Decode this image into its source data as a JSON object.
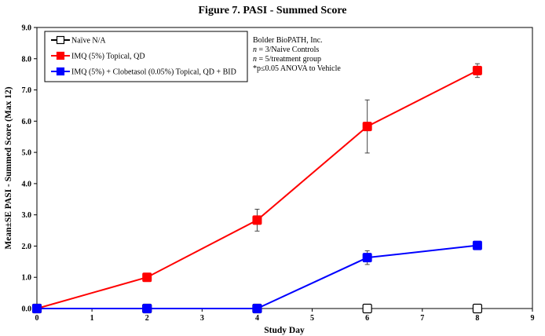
{
  "chart_data": {
    "type": "line",
    "title": "Figure 7. PASI - Summed Score",
    "xlabel": "Study Day",
    "ylabel": "Mean±SE PASI - Summed Score (Max 12)",
    "xlim": [
      0,
      9
    ],
    "ylim": [
      0,
      9
    ],
    "xticks": [
      0,
      1,
      2,
      3,
      4,
      5,
      6,
      7,
      8,
      9
    ],
    "yticks": [
      "0.0",
      "1.0",
      "2.0",
      "3.0",
      "4.0",
      "5.0",
      "6.0",
      "7.0",
      "8.0",
      "9.0"
    ],
    "grid": false,
    "legend_position": "top-left",
    "series": [
      {
        "name": "Naïve N/A",
        "color": "#000000",
        "marker": "hollow-square",
        "x": [
          0,
          2,
          4,
          6,
          8
        ],
        "y": [
          0.0,
          0.0,
          0.0,
          0.0,
          0.0
        ],
        "err": [
          0,
          0,
          0,
          0,
          0
        ],
        "line": false
      },
      {
        "name": "IMQ (5%) Topical, QD",
        "color": "#ff0000",
        "marker": "filled-square",
        "x": [
          0,
          2,
          4,
          6,
          8
        ],
        "y": [
          0.0,
          1.0,
          2.83,
          5.83,
          7.62
        ],
        "err": [
          0,
          0,
          0.35,
          0.85,
          0.22
        ],
        "line": true
      },
      {
        "name": "IMQ (5%) + Clobetasol (0.05%) Topical, QD + BID",
        "color": "#0000ff",
        "marker": "filled-square",
        "x": [
          0,
          2,
          4,
          6,
          8
        ],
        "y": [
          0.0,
          0.0,
          0.0,
          1.63,
          2.02
        ],
        "err": [
          0,
          0,
          0,
          0.22,
          0.08
        ],
        "line": true
      }
    ],
    "annotations": [
      "Bolder BioPATH, Inc.",
      "n = 3/Naive Controls",
      "n = 5/treatment group",
      "*p≤0.05 ANOVA to Vehicle"
    ]
  }
}
